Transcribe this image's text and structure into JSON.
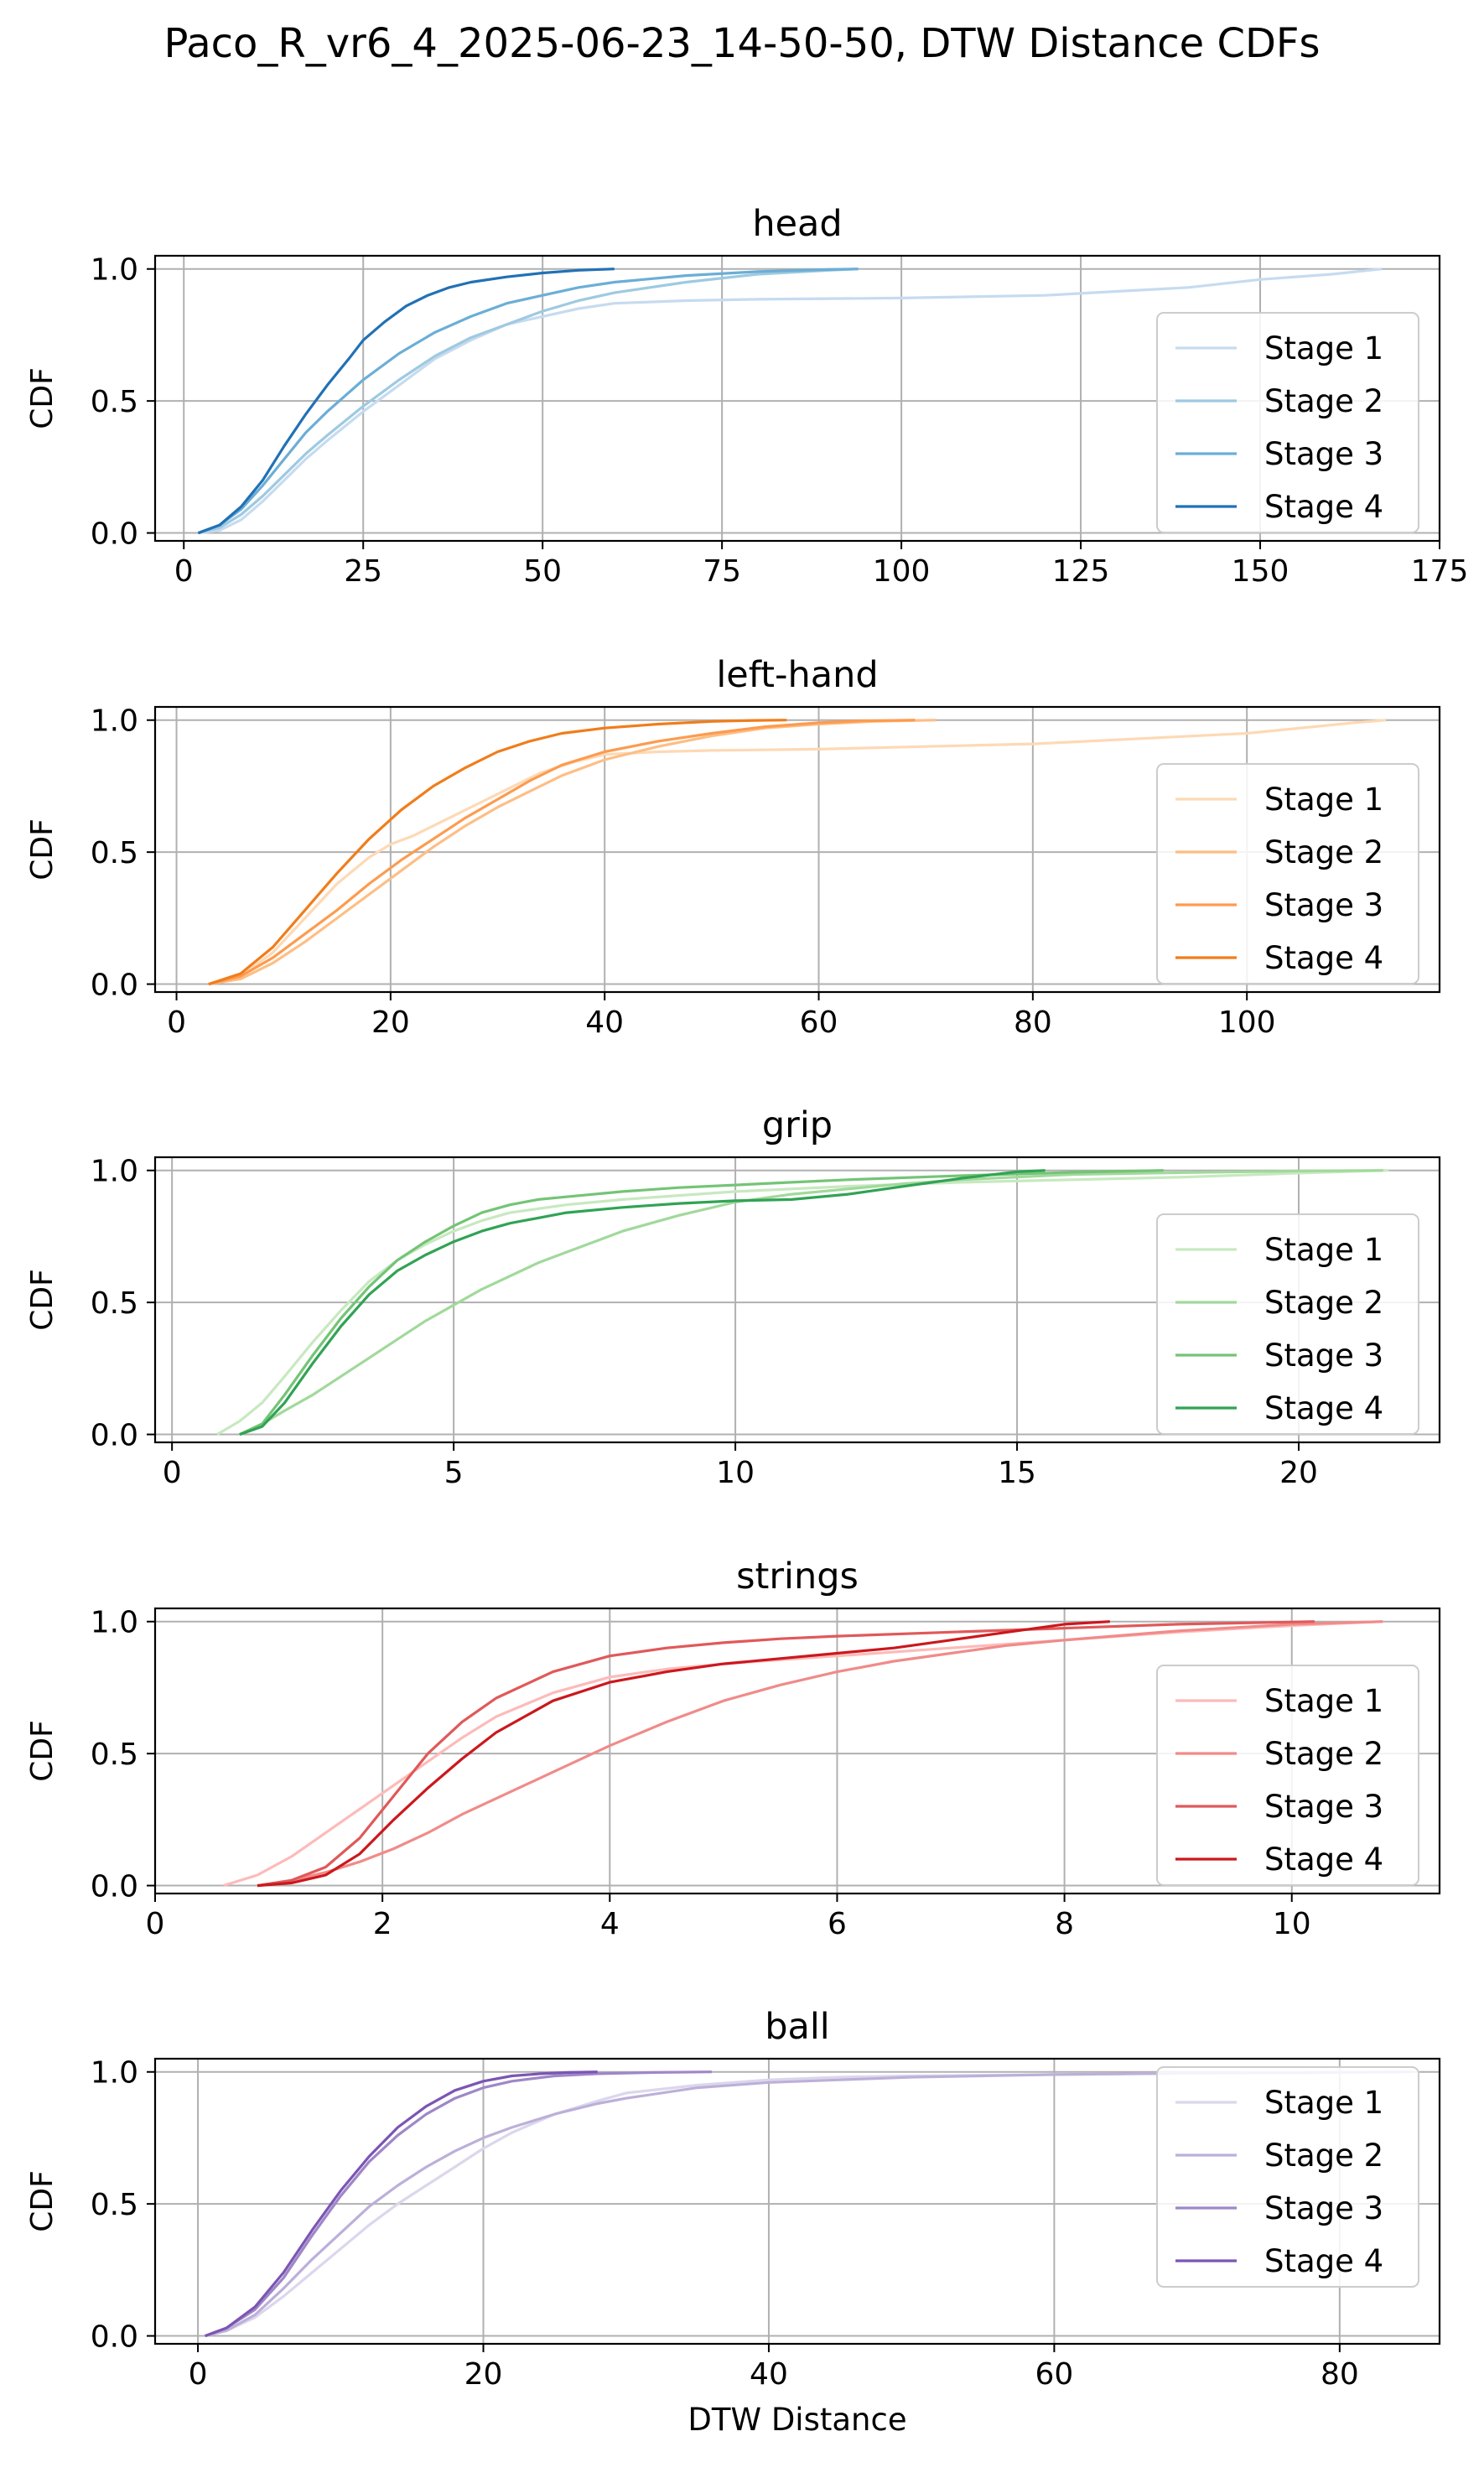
{
  "title": "Paco_R_vr6_4_2025-06-23_14-50-50, DTW Distance CDFs",
  "chart_data": [
    {
      "type": "line",
      "title": "head",
      "xlabel": "",
      "ylabel": "CDF",
      "xlim": [
        -4,
        175
      ],
      "ylim": [
        -0.03,
        1.05
      ],
      "xticks": [
        0,
        25,
        50,
        75,
        100,
        125,
        150,
        175
      ],
      "yticks": [
        0.0,
        0.5,
        1.0
      ],
      "grid": true,
      "legend": "right",
      "series": [
        {
          "name": "Stage 1",
          "color": "#c6dbef",
          "x": [
            2,
            5,
            8,
            11,
            14,
            17,
            20,
            25,
            30,
            35,
            40,
            45,
            50,
            55,
            60,
            70,
            80,
            100,
            120,
            140,
            150,
            160,
            167
          ],
          "y": [
            0,
            0.01,
            0.05,
            0.12,
            0.2,
            0.28,
            0.35,
            0.46,
            0.56,
            0.66,
            0.73,
            0.79,
            0.82,
            0.85,
            0.87,
            0.88,
            0.885,
            0.89,
            0.9,
            0.93,
            0.96,
            0.98,
            1.0
          ]
        },
        {
          "name": "Stage 2",
          "color": "#9ecae1",
          "x": [
            2,
            5,
            8,
            11,
            14,
            17,
            20,
            25,
            30,
            35,
            40,
            45,
            50,
            55,
            60,
            70,
            80,
            90,
            94
          ],
          "y": [
            0,
            0.02,
            0.07,
            0.14,
            0.22,
            0.3,
            0.37,
            0.48,
            0.58,
            0.67,
            0.74,
            0.79,
            0.84,
            0.88,
            0.91,
            0.95,
            0.98,
            0.995,
            1.0
          ]
        },
        {
          "name": "Stage 3",
          "color": "#6baed6",
          "x": [
            2,
            5,
            8,
            11,
            14,
            17,
            20,
            25,
            30,
            35,
            40,
            45,
            50,
            55,
            60,
            70,
            80,
            90,
            94
          ],
          "y": [
            0,
            0.03,
            0.09,
            0.18,
            0.28,
            0.38,
            0.46,
            0.58,
            0.68,
            0.76,
            0.82,
            0.87,
            0.9,
            0.93,
            0.95,
            0.975,
            0.99,
            0.998,
            1.0
          ]
        },
        {
          "name": "Stage 4",
          "color": "#2171b5",
          "x": [
            2,
            5,
            8,
            11,
            14,
            17,
            20,
            23,
            25,
            28,
            31,
            34,
            37,
            40,
            45,
            50,
            55,
            60
          ],
          "y": [
            0,
            0.03,
            0.1,
            0.2,
            0.33,
            0.45,
            0.56,
            0.66,
            0.73,
            0.8,
            0.86,
            0.9,
            0.93,
            0.95,
            0.97,
            0.985,
            0.995,
            1.0
          ]
        }
      ]
    },
    {
      "type": "line",
      "title": "left-hand",
      "xlabel": "",
      "ylabel": "CDF",
      "xlim": [
        -2,
        118
      ],
      "ylim": [
        -0.03,
        1.05
      ],
      "xticks": [
        0,
        20,
        40,
        60,
        80,
        100
      ],
      "yticks": [
        0.0,
        0.5,
        1.0
      ],
      "grid": true,
      "legend": "right",
      "series": [
        {
          "name": "Stage 1",
          "color": "#fdd9b5",
          "x": [
            3,
            6,
            9,
            12,
            15,
            18,
            20,
            22,
            25,
            28,
            31,
            34,
            37,
            40,
            45,
            50,
            60,
            70,
            80,
            90,
            100,
            105,
            110,
            113
          ],
          "y": [
            0,
            0.03,
            0.12,
            0.25,
            0.38,
            0.48,
            0.53,
            0.56,
            0.62,
            0.68,
            0.74,
            0.8,
            0.84,
            0.87,
            0.88,
            0.885,
            0.89,
            0.9,
            0.91,
            0.93,
            0.95,
            0.97,
            0.99,
            1.0
          ]
        },
        {
          "name": "Stage 2",
          "color": "#fdbe85",
          "x": [
            3,
            6,
            9,
            12,
            15,
            18,
            21,
            24,
            27,
            30,
            33,
            36,
            40,
            45,
            50,
            55,
            60,
            65,
            71
          ],
          "y": [
            0,
            0.02,
            0.08,
            0.16,
            0.25,
            0.34,
            0.43,
            0.52,
            0.6,
            0.67,
            0.73,
            0.79,
            0.85,
            0.9,
            0.94,
            0.97,
            0.985,
            0.995,
            1.0
          ]
        },
        {
          "name": "Stage 3",
          "color": "#fd9b4f",
          "x": [
            3,
            6,
            9,
            12,
            15,
            18,
            21,
            24,
            27,
            30,
            33,
            36,
            40,
            45,
            50,
            55,
            60,
            64,
            69
          ],
          "y": [
            0,
            0.03,
            0.1,
            0.19,
            0.28,
            0.38,
            0.47,
            0.55,
            0.63,
            0.7,
            0.77,
            0.83,
            0.88,
            0.92,
            0.95,
            0.975,
            0.99,
            0.997,
            1.0
          ]
        },
        {
          "name": "Stage 4",
          "color": "#f07d1b",
          "x": [
            3,
            6,
            9,
            12,
            15,
            18,
            21,
            24,
            27,
            30,
            33,
            36,
            40,
            45,
            50,
            54,
            57
          ],
          "y": [
            0,
            0.04,
            0.14,
            0.28,
            0.42,
            0.55,
            0.66,
            0.75,
            0.82,
            0.88,
            0.92,
            0.95,
            0.97,
            0.985,
            0.995,
            0.999,
            1.0
          ]
        }
      ]
    },
    {
      "type": "line",
      "title": "grip",
      "xlabel": "",
      "ylabel": "CDF",
      "xlim": [
        -0.3,
        22.5
      ],
      "ylim": [
        -0.03,
        1.05
      ],
      "xticks": [
        0,
        5,
        10,
        15,
        20
      ],
      "yticks": [
        0.0,
        0.5,
        1.0
      ],
      "grid": true,
      "legend": "right",
      "series": [
        {
          "name": "Stage 1",
          "color": "#c7e9c0",
          "x": [
            0.8,
            1.2,
            1.6,
            2.0,
            2.5,
            3.0,
            3.5,
            4.0,
            4.5,
            5.0,
            5.5,
            6.0,
            7.0,
            8.0,
            10.0,
            12.0,
            14.0,
            16.0,
            18.0,
            20.0,
            21.6
          ],
          "y": [
            0,
            0.05,
            0.12,
            0.22,
            0.35,
            0.47,
            0.58,
            0.66,
            0.72,
            0.77,
            0.81,
            0.84,
            0.87,
            0.89,
            0.92,
            0.94,
            0.955,
            0.965,
            0.975,
            0.99,
            1.0
          ]
        },
        {
          "name": "Stage 2",
          "color": "#a1d99b",
          "x": [
            1.2,
            1.6,
            2.0,
            2.5,
            3.0,
            3.5,
            4.0,
            4.5,
            5.0,
            5.5,
            6.0,
            6.5,
            7.0,
            7.5,
            8.0,
            9.0,
            10.0,
            11.0,
            12.0,
            13.0,
            14.0,
            15.0,
            16.0,
            18.0,
            20.0,
            21.5
          ],
          "y": [
            0,
            0.04,
            0.09,
            0.15,
            0.22,
            0.29,
            0.36,
            0.43,
            0.49,
            0.55,
            0.6,
            0.65,
            0.69,
            0.73,
            0.77,
            0.83,
            0.88,
            0.91,
            0.93,
            0.95,
            0.965,
            0.975,
            0.985,
            0.992,
            0.998,
            1.0
          ]
        },
        {
          "name": "Stage 3",
          "color": "#74c476",
          "x": [
            1.2,
            1.6,
            2.0,
            2.5,
            3.0,
            3.5,
            4.0,
            4.5,
            5.0,
            5.5,
            6.0,
            6.5,
            7.0,
            8.0,
            9.0,
            10.0,
            11.0,
            12.0,
            14.0,
            16.0,
            17.6
          ],
          "y": [
            0,
            0.04,
            0.15,
            0.3,
            0.44,
            0.56,
            0.66,
            0.73,
            0.79,
            0.84,
            0.87,
            0.89,
            0.9,
            0.92,
            0.935,
            0.945,
            0.955,
            0.965,
            0.98,
            0.993,
            1.0
          ]
        },
        {
          "name": "Stage 4",
          "color": "#31a354",
          "x": [
            1.2,
            1.6,
            2.0,
            2.5,
            3.0,
            3.5,
            4.0,
            4.5,
            5.0,
            5.5,
            6.0,
            7.0,
            8.0,
            9.0,
            10.0,
            11.0,
            12.0,
            13.0,
            14.0,
            15.0,
            15.5
          ],
          "y": [
            0,
            0.03,
            0.12,
            0.27,
            0.41,
            0.53,
            0.62,
            0.68,
            0.73,
            0.77,
            0.8,
            0.84,
            0.86,
            0.875,
            0.885,
            0.89,
            0.91,
            0.94,
            0.97,
            0.995,
            1.0
          ]
        }
      ]
    },
    {
      "type": "line",
      "title": "strings",
      "xlabel": "",
      "ylabel": "CDF",
      "xlim": [
        0,
        11.3
      ],
      "ylim": [
        -0.03,
        1.05
      ],
      "xticks": [
        0,
        2,
        4,
        6,
        8,
        10
      ],
      "yticks": [
        0.0,
        0.5,
        1.0
      ],
      "grid": true,
      "legend": "right",
      "series": [
        {
          "name": "Stage 1",
          "color": "#fcbbb9",
          "x": [
            0.6,
            0.9,
            1.2,
            1.5,
            1.8,
            2.1,
            2.4,
            2.7,
            3.0,
            3.5,
            4.0,
            4.5,
            5.0,
            6.0,
            7.0,
            8.0,
            9.0,
            10.0,
            10.8
          ],
          "y": [
            0,
            0.04,
            0.11,
            0.2,
            0.29,
            0.38,
            0.47,
            0.56,
            0.64,
            0.73,
            0.79,
            0.82,
            0.84,
            0.87,
            0.9,
            0.93,
            0.96,
            0.985,
            1.0
          ]
        },
        {
          "name": "Stage 2",
          "color": "#f08b89",
          "x": [
            0.9,
            1.2,
            1.5,
            1.8,
            2.1,
            2.4,
            2.7,
            3.0,
            3.5,
            4.0,
            4.5,
            5.0,
            5.5,
            6.0,
            6.5,
            7.0,
            7.5,
            8.0,
            9.0,
            10.0,
            10.8
          ],
          "y": [
            0,
            0.02,
            0.05,
            0.09,
            0.14,
            0.2,
            0.27,
            0.33,
            0.43,
            0.53,
            0.62,
            0.7,
            0.76,
            0.81,
            0.85,
            0.88,
            0.91,
            0.93,
            0.965,
            0.99,
            1.0
          ]
        },
        {
          "name": "Stage 3",
          "color": "#e0595a",
          "x": [
            0.9,
            1.2,
            1.5,
            1.8,
            2.1,
            2.4,
            2.7,
            3.0,
            3.5,
            4.0,
            4.5,
            5.0,
            5.5,
            6.0,
            7.0,
            8.0,
            9.0,
            10.2
          ],
          "y": [
            0,
            0.02,
            0.07,
            0.18,
            0.34,
            0.5,
            0.62,
            0.71,
            0.81,
            0.87,
            0.9,
            0.92,
            0.935,
            0.945,
            0.96,
            0.975,
            0.99,
            1.0
          ]
        },
        {
          "name": "Stage 4",
          "color": "#cb181d",
          "x": [
            0.9,
            1.2,
            1.5,
            1.8,
            2.1,
            2.4,
            2.7,
            3.0,
            3.5,
            4.0,
            4.5,
            5.0,
            5.5,
            6.0,
            6.5,
            7.0,
            7.5,
            8.0,
            8.4
          ],
          "y": [
            0,
            0.01,
            0.04,
            0.12,
            0.25,
            0.37,
            0.48,
            0.58,
            0.7,
            0.77,
            0.81,
            0.84,
            0.86,
            0.88,
            0.9,
            0.93,
            0.96,
            0.99,
            1.0
          ]
        }
      ]
    },
    {
      "type": "line",
      "title": "ball",
      "xlabel": "DTW Distance",
      "ylabel": "CDF",
      "xlim": [
        -3,
        87
      ],
      "ylim": [
        -0.03,
        1.05
      ],
      "xticks": [
        0,
        20,
        40,
        60,
        80
      ],
      "yticks": [
        0.0,
        0.5,
        1.0
      ],
      "grid": true,
      "legend": "top-right",
      "series": [
        {
          "name": "Stage 1",
          "color": "#dcd6ed",
          "x": [
            0.5,
            2,
            4,
            6,
            8,
            10,
            12,
            14,
            16,
            18,
            20,
            22,
            25,
            28,
            30,
            35,
            40,
            45,
            50,
            60,
            70,
            80,
            85
          ],
          "y": [
            0,
            0.02,
            0.07,
            0.15,
            0.24,
            0.33,
            0.42,
            0.5,
            0.57,
            0.64,
            0.71,
            0.77,
            0.84,
            0.89,
            0.92,
            0.95,
            0.97,
            0.98,
            0.985,
            0.99,
            0.995,
            0.998,
            1.0
          ]
        },
        {
          "name": "Stage 2",
          "color": "#bcb0d9",
          "x": [
            0.5,
            2,
            4,
            6,
            8,
            10,
            12,
            14,
            16,
            18,
            20,
            22,
            25,
            28,
            30,
            35,
            40,
            45,
            50,
            60,
            70,
            80,
            85
          ],
          "y": [
            0,
            0.02,
            0.08,
            0.18,
            0.29,
            0.39,
            0.49,
            0.57,
            0.64,
            0.7,
            0.75,
            0.79,
            0.84,
            0.88,
            0.9,
            0.94,
            0.96,
            0.97,
            0.98,
            0.99,
            0.995,
            0.998,
            1.0
          ]
        },
        {
          "name": "Stage 3",
          "color": "#9e87c8",
          "x": [
            0.5,
            2,
            4,
            6,
            8,
            10,
            12,
            14,
            16,
            18,
            20,
            22,
            25,
            28,
            32,
            36
          ],
          "y": [
            0,
            0.03,
            0.1,
            0.22,
            0.38,
            0.53,
            0.66,
            0.76,
            0.84,
            0.9,
            0.94,
            0.965,
            0.985,
            0.993,
            0.998,
            1.0
          ]
        },
        {
          "name": "Stage 4",
          "color": "#7c55b3",
          "x": [
            0.5,
            2,
            4,
            6,
            8,
            10,
            12,
            14,
            16,
            18,
            20,
            22,
            24,
            26,
            28
          ],
          "y": [
            0,
            0.03,
            0.11,
            0.24,
            0.4,
            0.55,
            0.68,
            0.79,
            0.87,
            0.93,
            0.965,
            0.985,
            0.993,
            0.998,
            1.0
          ]
        }
      ]
    }
  ]
}
